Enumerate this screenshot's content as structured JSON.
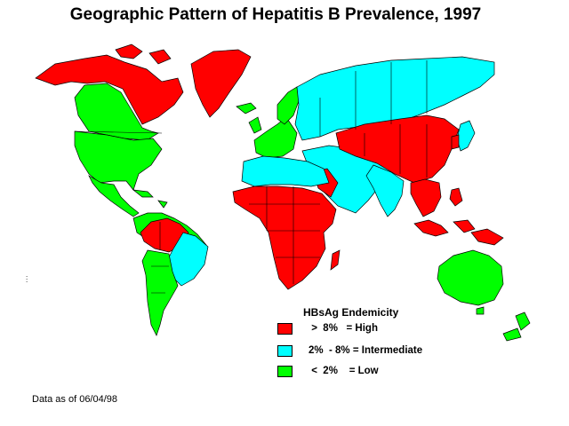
{
  "title": "Geographic Pattern of Hepatitis B Prevalence, 1997",
  "colors": {
    "high": "#ff0000",
    "intermediate": "#00ffff",
    "low": "#00ff00",
    "outline": "#000000"
  },
  "legend": {
    "title": "HBsAg Endemicity",
    "items": [
      {
        "label": " >  8%   = High",
        "color": "#ff0000"
      },
      {
        "label": "2%  - 8% = Intermediate",
        "color": "#00ffff"
      },
      {
        "label": " <  2%    = Low",
        "color": "#00ff00"
      }
    ]
  },
  "footnote": "Data as of 06/04/98",
  "regions": [
    "alaska-canada",
    "greenland",
    "usa",
    "mexico-central-america",
    "caribbean",
    "south-america-north",
    "amazon",
    "south-america-south",
    "western-europe",
    "eastern-europe-russia",
    "middle-east",
    "north-africa",
    "sub-saharan-africa",
    "madagascar",
    "india",
    "china-mongolia",
    "southeast-asia",
    "indonesia",
    "japan",
    "australia",
    "new-zealand"
  ]
}
